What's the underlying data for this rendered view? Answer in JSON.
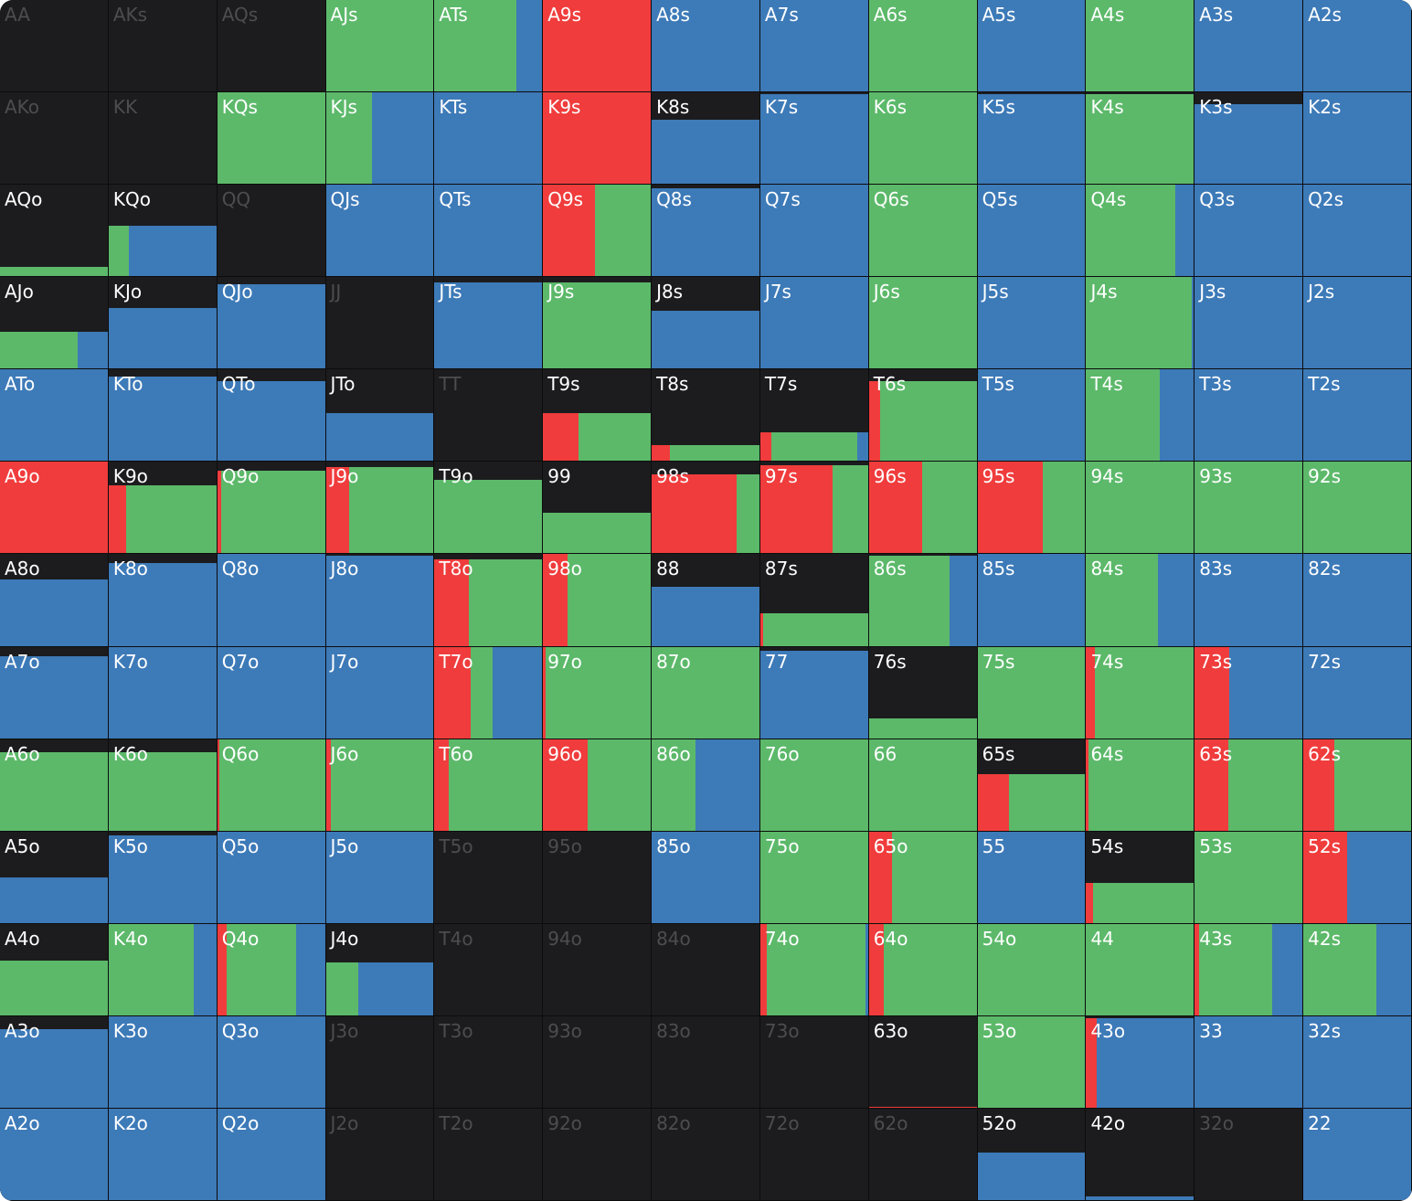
{
  "colors": {
    "fold": "#1c1c1e",
    "raise": "#f03c3c",
    "call": "#5cb96a",
    "check": "#3d7ab8",
    "dim_text": "#4d4d50",
    "text": "#ffffff"
  },
  "legend_note": "",
  "rows": [
    [
      {
        "l": "AA",
        "f": 0,
        "s": []
      },
      {
        "l": "AKs",
        "f": 0,
        "s": []
      },
      {
        "l": "AQs",
        "f": 0,
        "s": []
      },
      {
        "l": "AJs",
        "f": 1,
        "s": [
          0,
          1,
          0
        ]
      },
      {
        "l": "ATs",
        "f": 1,
        "s": [
          0,
          0.76,
          0.24
        ]
      },
      {
        "l": "A9s",
        "f": 1,
        "s": [
          1,
          0,
          0
        ]
      },
      {
        "l": "A8s",
        "f": 1,
        "s": [
          0,
          0,
          1
        ]
      },
      {
        "l": "A7s",
        "f": 1,
        "s": [
          0,
          0,
          1
        ]
      },
      {
        "l": "A6s",
        "f": 1,
        "s": [
          0,
          1,
          0
        ]
      },
      {
        "l": "A5s",
        "f": 1,
        "s": [
          0,
          0,
          1
        ]
      },
      {
        "l": "A4s",
        "f": 1,
        "s": [
          0,
          1,
          0
        ]
      },
      {
        "l": "A3s",
        "f": 1,
        "s": [
          0,
          0,
          1
        ]
      },
      {
        "l": "A2s",
        "f": 1,
        "s": [
          0,
          0,
          1
        ]
      }
    ],
    [
      {
        "l": "AKo",
        "f": 0,
        "s": []
      },
      {
        "l": "KK",
        "f": 0,
        "s": []
      },
      {
        "l": "KQs",
        "f": 1,
        "s": [
          0,
          1,
          0
        ]
      },
      {
        "l": "KJs",
        "f": 1,
        "s": [
          0,
          0.43,
          0.57
        ]
      },
      {
        "l": "KTs",
        "f": 1,
        "s": [
          0,
          0,
          1
        ]
      },
      {
        "l": "K9s",
        "f": 1,
        "s": [
          1,
          0,
          0
        ]
      },
      {
        "l": "K8s",
        "f": 0.7,
        "s": [
          0,
          0,
          1
        ]
      },
      {
        "l": "K7s",
        "f": 0.98,
        "s": [
          0,
          0,
          1
        ]
      },
      {
        "l": "K6s",
        "f": 1,
        "s": [
          0,
          1,
          0
        ]
      },
      {
        "l": "K5s",
        "f": 0.98,
        "s": [
          0,
          0,
          1
        ]
      },
      {
        "l": "K4s",
        "f": 0.98,
        "s": [
          0,
          1,
          0
        ]
      },
      {
        "l": "K3s",
        "f": 0.87,
        "s": [
          0,
          0,
          1
        ]
      },
      {
        "l": "K2s",
        "f": 1,
        "s": [
          0,
          0,
          1
        ]
      }
    ],
    [
      {
        "l": "AQo",
        "f": 0.1,
        "s": [
          0,
          1,
          0
        ]
      },
      {
        "l": "KQo",
        "f": 0.55,
        "s": [
          0,
          0.19,
          0.81
        ]
      },
      {
        "l": "QQ",
        "f": 0,
        "s": []
      },
      {
        "l": "QJs",
        "f": 1,
        "s": [
          0,
          0,
          1
        ]
      },
      {
        "l": "QTs",
        "f": 1,
        "s": [
          0,
          0,
          1
        ]
      },
      {
        "l": "Q9s",
        "f": 1,
        "s": [
          0.48,
          0.52,
          0
        ]
      },
      {
        "l": "Q8s",
        "f": 0.96,
        "s": [
          0,
          0,
          1
        ]
      },
      {
        "l": "Q7s",
        "f": 1,
        "s": [
          0,
          0,
          1
        ]
      },
      {
        "l": "Q6s",
        "f": 1,
        "s": [
          0,
          1,
          0
        ]
      },
      {
        "l": "Q5s",
        "f": 1,
        "s": [
          0,
          0,
          1
        ]
      },
      {
        "l": "Q4s",
        "f": 1,
        "s": [
          0,
          0.83,
          0.17
        ]
      },
      {
        "l": "Q3s",
        "f": 1,
        "s": [
          0,
          0,
          1
        ]
      },
      {
        "l": "Q2s",
        "f": 1,
        "s": [
          0,
          0,
          1
        ]
      }
    ],
    [
      {
        "l": "AJo",
        "f": 0.4,
        "s": [
          0,
          0.72,
          0.28
        ]
      },
      {
        "l": "KJo",
        "f": 0.66,
        "s": [
          0,
          0,
          1
        ]
      },
      {
        "l": "QJo",
        "f": 0.92,
        "s": [
          0,
          0,
          1
        ]
      },
      {
        "l": "JJ",
        "f": 0,
        "s": []
      },
      {
        "l": "JTs",
        "f": 0.94,
        "s": [
          0,
          0,
          1
        ]
      },
      {
        "l": "J9s",
        "f": 0.94,
        "s": [
          0,
          1,
          0
        ]
      },
      {
        "l": "J8s",
        "f": 0.63,
        "s": [
          0,
          0,
          1
        ]
      },
      {
        "l": "J7s",
        "f": 1,
        "s": [
          0,
          0,
          1
        ]
      },
      {
        "l": "J6s",
        "f": 1,
        "s": [
          0,
          1,
          0
        ]
      },
      {
        "l": "J5s",
        "f": 1,
        "s": [
          0,
          0,
          1
        ]
      },
      {
        "l": "J4s",
        "f": 1,
        "s": [
          0,
          0.98,
          0.02
        ]
      },
      {
        "l": "J3s",
        "f": 1,
        "s": [
          0,
          0,
          1
        ]
      },
      {
        "l": "J2s",
        "f": 1,
        "s": [
          0,
          0,
          1
        ]
      }
    ],
    [
      {
        "l": "ATo",
        "f": 1,
        "s": [
          0,
          0,
          1
        ]
      },
      {
        "l": "KTo",
        "f": 0.92,
        "s": [
          0,
          0,
          1
        ]
      },
      {
        "l": "QTo",
        "f": 0.87,
        "s": [
          0,
          0,
          1
        ]
      },
      {
        "l": "JTo",
        "f": 0.52,
        "s": [
          0,
          0,
          1
        ]
      },
      {
        "l": "TT",
        "f": 0,
        "s": []
      },
      {
        "l": "T9s",
        "f": 0.52,
        "s": [
          0.33,
          0.67,
          0
        ]
      },
      {
        "l": "T8s",
        "f": 0.17,
        "s": [
          0.17,
          0.83,
          0
        ]
      },
      {
        "l": "T7s",
        "f": 0.31,
        "s": [
          0.1,
          0.8,
          0.1
        ]
      },
      {
        "l": "T6s",
        "f": 0.87,
        "s": [
          0.1,
          0.9,
          0
        ]
      },
      {
        "l": "T5s",
        "f": 1,
        "s": [
          0,
          0,
          1
        ]
      },
      {
        "l": "T4s",
        "f": 1,
        "s": [
          0,
          0.68,
          0.32
        ]
      },
      {
        "l": "T3s",
        "f": 1,
        "s": [
          0,
          0,
          1
        ]
      },
      {
        "l": "T2s",
        "f": 1,
        "s": [
          0,
          0,
          1
        ]
      }
    ],
    [
      {
        "l": "A9o",
        "f": 1,
        "s": [
          1,
          0,
          0
        ]
      },
      {
        "l": "K9o",
        "f": 0.74,
        "s": [
          0.16,
          0.84,
          0
        ]
      },
      {
        "l": "Q9o",
        "f": 0.9,
        "s": [
          0.04,
          0.96,
          0
        ]
      },
      {
        "l": "J9o",
        "f": 0.94,
        "s": [
          0.22,
          0.78,
          0
        ]
      },
      {
        "l": "T9o",
        "f": 0.8,
        "s": [
          0,
          1,
          0
        ]
      },
      {
        "l": "99",
        "f": 0.44,
        "s": [
          0,
          1,
          0
        ]
      },
      {
        "l": "98s",
        "f": 0.86,
        "s": [
          0.79,
          0.21,
          0
        ]
      },
      {
        "l": "97s",
        "f": 0.96,
        "s": [
          0.67,
          0.33,
          0
        ]
      },
      {
        "l": "96s",
        "f": 1,
        "s": [
          0.49,
          0.51,
          0
        ]
      },
      {
        "l": "95s",
        "f": 1,
        "s": [
          0.61,
          0.39,
          0
        ]
      },
      {
        "l": "94s",
        "f": 1,
        "s": [
          0,
          1,
          0
        ]
      },
      {
        "l": "93s",
        "f": 1,
        "s": [
          0,
          1,
          0
        ]
      },
      {
        "l": "92s",
        "f": 1,
        "s": [
          0,
          1,
          0
        ]
      }
    ],
    [
      {
        "l": "A8o",
        "f": 0.72,
        "s": [
          0,
          0,
          1
        ]
      },
      {
        "l": "K8o",
        "f": 0.9,
        "s": [
          0,
          0,
          1
        ]
      },
      {
        "l": "Q8o",
        "f": 1,
        "s": [
          0,
          0,
          1
        ]
      },
      {
        "l": "J8o",
        "f": 0.98,
        "s": [
          0,
          0,
          1
        ]
      },
      {
        "l": "T8o",
        "f": 0.94,
        "s": [
          0.32,
          0.68,
          0
        ]
      },
      {
        "l": "98o",
        "f": 1,
        "s": [
          0.23,
          0.77,
          0
        ]
      },
      {
        "l": "88",
        "f": 0.64,
        "s": [
          0,
          0,
          1
        ]
      },
      {
        "l": "87s",
        "f": 0.36,
        "s": [
          0.03,
          0.97,
          0
        ]
      },
      {
        "l": "86s",
        "f": 0.98,
        "s": [
          0,
          0.75,
          0.25
        ]
      },
      {
        "l": "85s",
        "f": 1,
        "s": [
          0,
          0,
          1
        ]
      },
      {
        "l": "84s",
        "f": 1,
        "s": [
          0,
          0.67,
          0.33
        ]
      },
      {
        "l": "83s",
        "f": 1,
        "s": [
          0,
          0,
          1
        ]
      },
      {
        "l": "82s",
        "f": 1,
        "s": [
          0,
          0,
          1
        ]
      }
    ],
    [
      {
        "l": "A7o",
        "f": 0.9,
        "s": [
          0,
          0,
          1
        ]
      },
      {
        "l": "K7o",
        "f": 1,
        "s": [
          0,
          0,
          1
        ]
      },
      {
        "l": "Q7o",
        "f": 1,
        "s": [
          0,
          0,
          1
        ]
      },
      {
        "l": "J7o",
        "f": 1,
        "s": [
          0,
          0,
          1
        ]
      },
      {
        "l": "T7o",
        "f": 1,
        "s": [
          0.34,
          0.2,
          0.46
        ]
      },
      {
        "l": "97o",
        "f": 1,
        "s": [
          0.02,
          0.98,
          0
        ]
      },
      {
        "l": "87o",
        "f": 1,
        "s": [
          0,
          1,
          0
        ]
      },
      {
        "l": "77",
        "f": 0.96,
        "s": [
          0,
          0,
          1
        ]
      },
      {
        "l": "76s",
        "f": 0.22,
        "s": [
          0,
          1,
          0
        ]
      },
      {
        "l": "75s",
        "f": 1,
        "s": [
          0,
          1,
          0
        ]
      },
      {
        "l": "74s",
        "f": 1,
        "s": [
          0.08,
          0.92,
          0
        ]
      },
      {
        "l": "73s",
        "f": 1,
        "s": [
          0.32,
          0,
          0.68
        ]
      },
      {
        "l": "72s",
        "f": 1,
        "s": [
          0,
          0,
          1
        ]
      }
    ],
    [
      {
        "l": "A6o",
        "f": 0.86,
        "s": [
          0,
          1,
          0
        ]
      },
      {
        "l": "K6o",
        "f": 0.86,
        "s": [
          0,
          1,
          0
        ]
      },
      {
        "l": "Q6o",
        "f": 1,
        "s": [
          0.02,
          0.98,
          0
        ]
      },
      {
        "l": "J6o",
        "f": 1,
        "s": [
          0.05,
          0.95,
          0
        ]
      },
      {
        "l": "T6o",
        "f": 1,
        "s": [
          0.13,
          0.87,
          0
        ]
      },
      {
        "l": "96o",
        "f": 1,
        "s": [
          0.41,
          0.59,
          0
        ]
      },
      {
        "l": "86o",
        "f": 1,
        "s": [
          0,
          0.41,
          0.59
        ]
      },
      {
        "l": "76o",
        "f": 1,
        "s": [
          0,
          1,
          0
        ]
      },
      {
        "l": "66",
        "f": 1,
        "s": [
          0,
          1,
          0
        ]
      },
      {
        "l": "65s",
        "f": 0.62,
        "s": [
          0.29,
          0.71,
          0
        ]
      },
      {
        "l": "64s",
        "f": 1,
        "s": [
          0.02,
          0.98,
          0
        ]
      },
      {
        "l": "63s",
        "f": 1,
        "s": [
          0.31,
          0.69,
          0
        ]
      },
      {
        "l": "62s",
        "f": 1,
        "s": [
          0.29,
          0.71,
          0
        ]
      }
    ],
    [
      {
        "l": "A5o",
        "f": 0.5,
        "s": [
          0,
          0,
          1
        ]
      },
      {
        "l": "K5o",
        "f": 0.96,
        "s": [
          0,
          0,
          1
        ]
      },
      {
        "l": "Q5o",
        "f": 1,
        "s": [
          0,
          0,
          1
        ]
      },
      {
        "l": "J5o",
        "f": 1,
        "s": [
          0,
          0,
          1
        ]
      },
      {
        "l": "T5o",
        "f": 0,
        "s": []
      },
      {
        "l": "95o",
        "f": 0,
        "s": []
      },
      {
        "l": "85o",
        "f": 1,
        "s": [
          0,
          0,
          1
        ]
      },
      {
        "l": "75o",
        "f": 1,
        "s": [
          0,
          1,
          0
        ]
      },
      {
        "l": "65o",
        "f": 1,
        "s": [
          0.21,
          0.79,
          0
        ]
      },
      {
        "l": "55",
        "f": 1,
        "s": [
          0,
          0,
          1
        ]
      },
      {
        "l": "54s",
        "f": 0.44,
        "s": [
          0.06,
          0.94,
          0
        ]
      },
      {
        "l": "53s",
        "f": 1,
        "s": [
          0,
          1,
          0
        ]
      },
      {
        "l": "52s",
        "f": 1,
        "s": [
          0.41,
          0,
          0.59
        ]
      }
    ],
    [
      {
        "l": "A4o",
        "f": 0.6,
        "s": [
          0,
          1,
          0
        ]
      },
      {
        "l": "K4o",
        "f": 1,
        "s": [
          0,
          0.79,
          0.21
        ]
      },
      {
        "l": "Q4o",
        "f": 1,
        "s": [
          0.09,
          0.64,
          0.27
        ]
      },
      {
        "l": "J4o",
        "f": 0.58,
        "s": [
          0,
          0.3,
          0.7
        ]
      },
      {
        "l": "T4o",
        "f": 0,
        "s": []
      },
      {
        "l": "94o",
        "f": 0,
        "s": []
      },
      {
        "l": "84o",
        "f": 0,
        "s": []
      },
      {
        "l": "74o",
        "f": 1,
        "s": [
          0.06,
          0.92,
          0.02
        ]
      },
      {
        "l": "64o",
        "f": 1,
        "s": [
          0.14,
          0.86,
          0
        ]
      },
      {
        "l": "54o",
        "f": 1,
        "s": [
          0,
          1,
          0
        ]
      },
      {
        "l": "44",
        "f": 1,
        "s": [
          0,
          1,
          0
        ]
      },
      {
        "l": "43s",
        "f": 1,
        "s": [
          0.04,
          0.68,
          0.28
        ]
      },
      {
        "l": "42s",
        "f": 1,
        "s": [
          0,
          0.68,
          0.32
        ]
      }
    ],
    [
      {
        "l": "A3o",
        "f": 0.86,
        "s": [
          0,
          0,
          1
        ]
      },
      {
        "l": "K3o",
        "f": 1,
        "s": [
          0,
          0,
          1
        ]
      },
      {
        "l": "Q3o",
        "f": 1,
        "s": [
          0,
          0,
          1
        ]
      },
      {
        "l": "J3o",
        "f": 0,
        "s": []
      },
      {
        "l": "T3o",
        "f": 0,
        "s": []
      },
      {
        "l": "93o",
        "f": 0,
        "s": []
      },
      {
        "l": "83o",
        "f": 0,
        "s": []
      },
      {
        "l": "73o",
        "f": 0,
        "s": []
      },
      {
        "l": "63o",
        "f": 0.01,
        "s": [
          1,
          0,
          0
        ]
      },
      {
        "l": "53o",
        "f": 1,
        "s": [
          0,
          1,
          0
        ]
      },
      {
        "l": "43o",
        "f": 0.98,
        "s": [
          0.1,
          0,
          0.9
        ]
      },
      {
        "l": "33",
        "f": 1,
        "s": [
          0,
          0,
          1
        ]
      },
      {
        "l": "32s",
        "f": 1,
        "s": [
          0,
          0,
          1
        ]
      }
    ],
    [
      {
        "l": "A2o",
        "f": 1,
        "s": [
          0,
          0,
          1
        ]
      },
      {
        "l": "K2o",
        "f": 1,
        "s": [
          0,
          0,
          1
        ]
      },
      {
        "l": "Q2o",
        "f": 1,
        "s": [
          0,
          0,
          1
        ]
      },
      {
        "l": "J2o",
        "f": 0,
        "s": []
      },
      {
        "l": "T2o",
        "f": 0,
        "s": []
      },
      {
        "l": "92o",
        "f": 0,
        "s": []
      },
      {
        "l": "82o",
        "f": 0,
        "s": []
      },
      {
        "l": "72o",
        "f": 0,
        "s": []
      },
      {
        "l": "62o",
        "f": 0,
        "s": []
      },
      {
        "l": "52o",
        "f": 0.52,
        "s": [
          0,
          0,
          1
        ]
      },
      {
        "l": "42o",
        "f": 0.04,
        "s": [
          0,
          0,
          1
        ]
      },
      {
        "l": "32o",
        "f": 0,
        "s": []
      },
      {
        "l": "22",
        "f": 1,
        "s": [
          0,
          0,
          1
        ]
      }
    ]
  ]
}
